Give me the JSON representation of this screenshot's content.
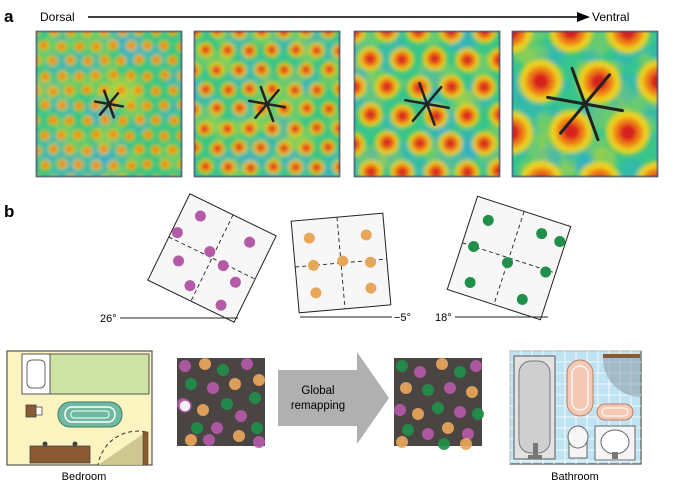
{
  "panel_a": {
    "label": "a",
    "axis_start": "Dorsal",
    "axis_end": "Ventral",
    "maps": [
      {
        "id": "map1",
        "fields_across": 9
      },
      {
        "id": "map2",
        "fields_across": 7
      },
      {
        "id": "map3",
        "fields_across": 5
      },
      {
        "id": "map4",
        "fields_across": 3
      }
    ],
    "colormap": [
      "#1c3f9a",
      "#2aa8d8",
      "#37c58c",
      "#b9d33a",
      "#f2d21a",
      "#f07d19",
      "#d8201a"
    ]
  },
  "panel_b": {
    "label": "b",
    "rotations": [
      {
        "text": "26°",
        "degrees": 26,
        "dot_color": "#b45aa8"
      },
      {
        "text": "−5°",
        "degrees": -5,
        "dot_color": "#e8a65a"
      },
      {
        "text": "18°",
        "degrees": 18,
        "dot_color": "#1f8f4a"
      }
    ],
    "remap_label_line1": "Global",
    "remap_label_line2": "remapping",
    "room_left": "Bedroom",
    "room_right": "Bathroom",
    "colors": {
      "bedroom_bg": "#fbf4c0",
      "bed": "#cfe3a5",
      "rug": "#6fb9a0",
      "floor_patch_dark": "#3f3f3f",
      "bathroom_tile": "#bfe3f2",
      "arrow_gray": "#b0b0b0"
    }
  }
}
